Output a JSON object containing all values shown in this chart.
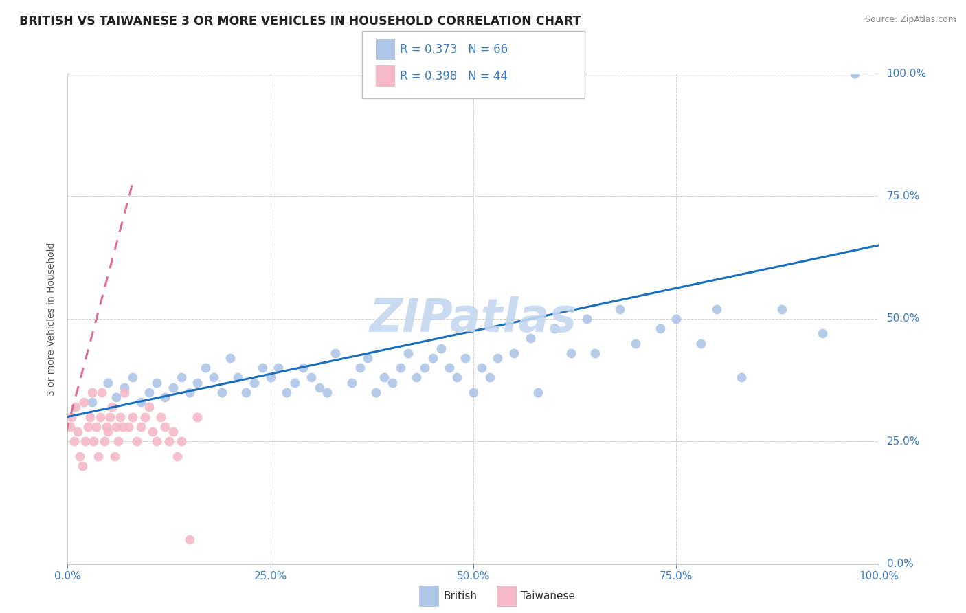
{
  "title": "BRITISH VS TAIWANESE 3 OR MORE VEHICLES IN HOUSEHOLD CORRELATION CHART",
  "source": "Source: ZipAtlas.com",
  "ylabel": "3 or more Vehicles in Household",
  "xlim": [
    0,
    100
  ],
  "ylim": [
    0,
    100
  ],
  "xticks": [
    0,
    25,
    50,
    75,
    100
  ],
  "yticks": [
    0,
    25,
    50,
    75,
    100
  ],
  "xticklabels": [
    "0.0%",
    "25.0%",
    "50.0%",
    "75.0%",
    "100.0%"
  ],
  "yticklabels": [
    "0.0%",
    "25.0%",
    "50.0%",
    "75.0%",
    "100.0%"
  ],
  "british_R": 0.373,
  "british_N": 66,
  "taiwanese_R": 0.398,
  "taiwanese_N": 44,
  "british_color": "#aec6e8",
  "taiwanese_color": "#f4b8c8",
  "british_trend_color": "#1a6fbd",
  "taiwanese_trend_color": "#e07090",
  "watermark": "ZIPatlas",
  "watermark_color": "#c5d8f0",
  "british_x": [
    3,
    5,
    6,
    7,
    8,
    9,
    10,
    11,
    12,
    13,
    14,
    15,
    16,
    17,
    18,
    19,
    20,
    21,
    22,
    23,
    24,
    25,
    26,
    27,
    28,
    29,
    30,
    31,
    32,
    33,
    35,
    36,
    37,
    38,
    39,
    40,
    41,
    42,
    43,
    44,
    45,
    46,
    47,
    48,
    49,
    50,
    51,
    52,
    53,
    55,
    57,
    58,
    60,
    62,
    64,
    65,
    68,
    70,
    73,
    75,
    78,
    80,
    83,
    88,
    93,
    97
  ],
  "british_y": [
    33,
    37,
    34,
    36,
    38,
    33,
    35,
    37,
    34,
    36,
    38,
    35,
    37,
    40,
    38,
    35,
    42,
    38,
    35,
    37,
    40,
    38,
    40,
    35,
    37,
    40,
    38,
    36,
    35,
    43,
    37,
    40,
    42,
    35,
    38,
    37,
    40,
    43,
    38,
    40,
    42,
    44,
    40,
    38,
    42,
    35,
    40,
    38,
    42,
    43,
    46,
    35,
    48,
    43,
    50,
    43,
    52,
    45,
    48,
    50,
    45,
    52,
    38,
    52,
    47,
    100
  ],
  "taiwanese_x": [
    0.3,
    0.5,
    0.8,
    1.0,
    1.2,
    1.5,
    1.8,
    2.0,
    2.2,
    2.5,
    2.8,
    3.0,
    3.2,
    3.5,
    3.8,
    4.0,
    4.2,
    4.5,
    4.8,
    5.0,
    5.2,
    5.5,
    5.8,
    6.0,
    6.2,
    6.5,
    6.8,
    7.0,
    7.5,
    8.0,
    8.5,
    9.0,
    9.5,
    10.0,
    10.5,
    11.0,
    11.5,
    12.0,
    12.5,
    13.0,
    13.5,
    14.0,
    15.0,
    16.0
  ],
  "taiwanese_y": [
    28,
    30,
    25,
    32,
    27,
    22,
    20,
    33,
    25,
    28,
    30,
    35,
    25,
    28,
    22,
    30,
    35,
    25,
    28,
    27,
    30,
    32,
    22,
    28,
    25,
    30,
    28,
    35,
    28,
    30,
    25,
    28,
    30,
    32,
    27,
    25,
    30,
    28,
    25,
    27,
    22,
    25,
    5,
    30
  ],
  "british_trend_x0": 0,
  "british_trend_y0": 30,
  "british_trend_x1": 100,
  "british_trend_y1": 65,
  "taiwanese_trend_x0": 0,
  "taiwanese_trend_y0": 28,
  "taiwanese_trend_x1": 10,
  "taiwanese_trend_y1": 90
}
